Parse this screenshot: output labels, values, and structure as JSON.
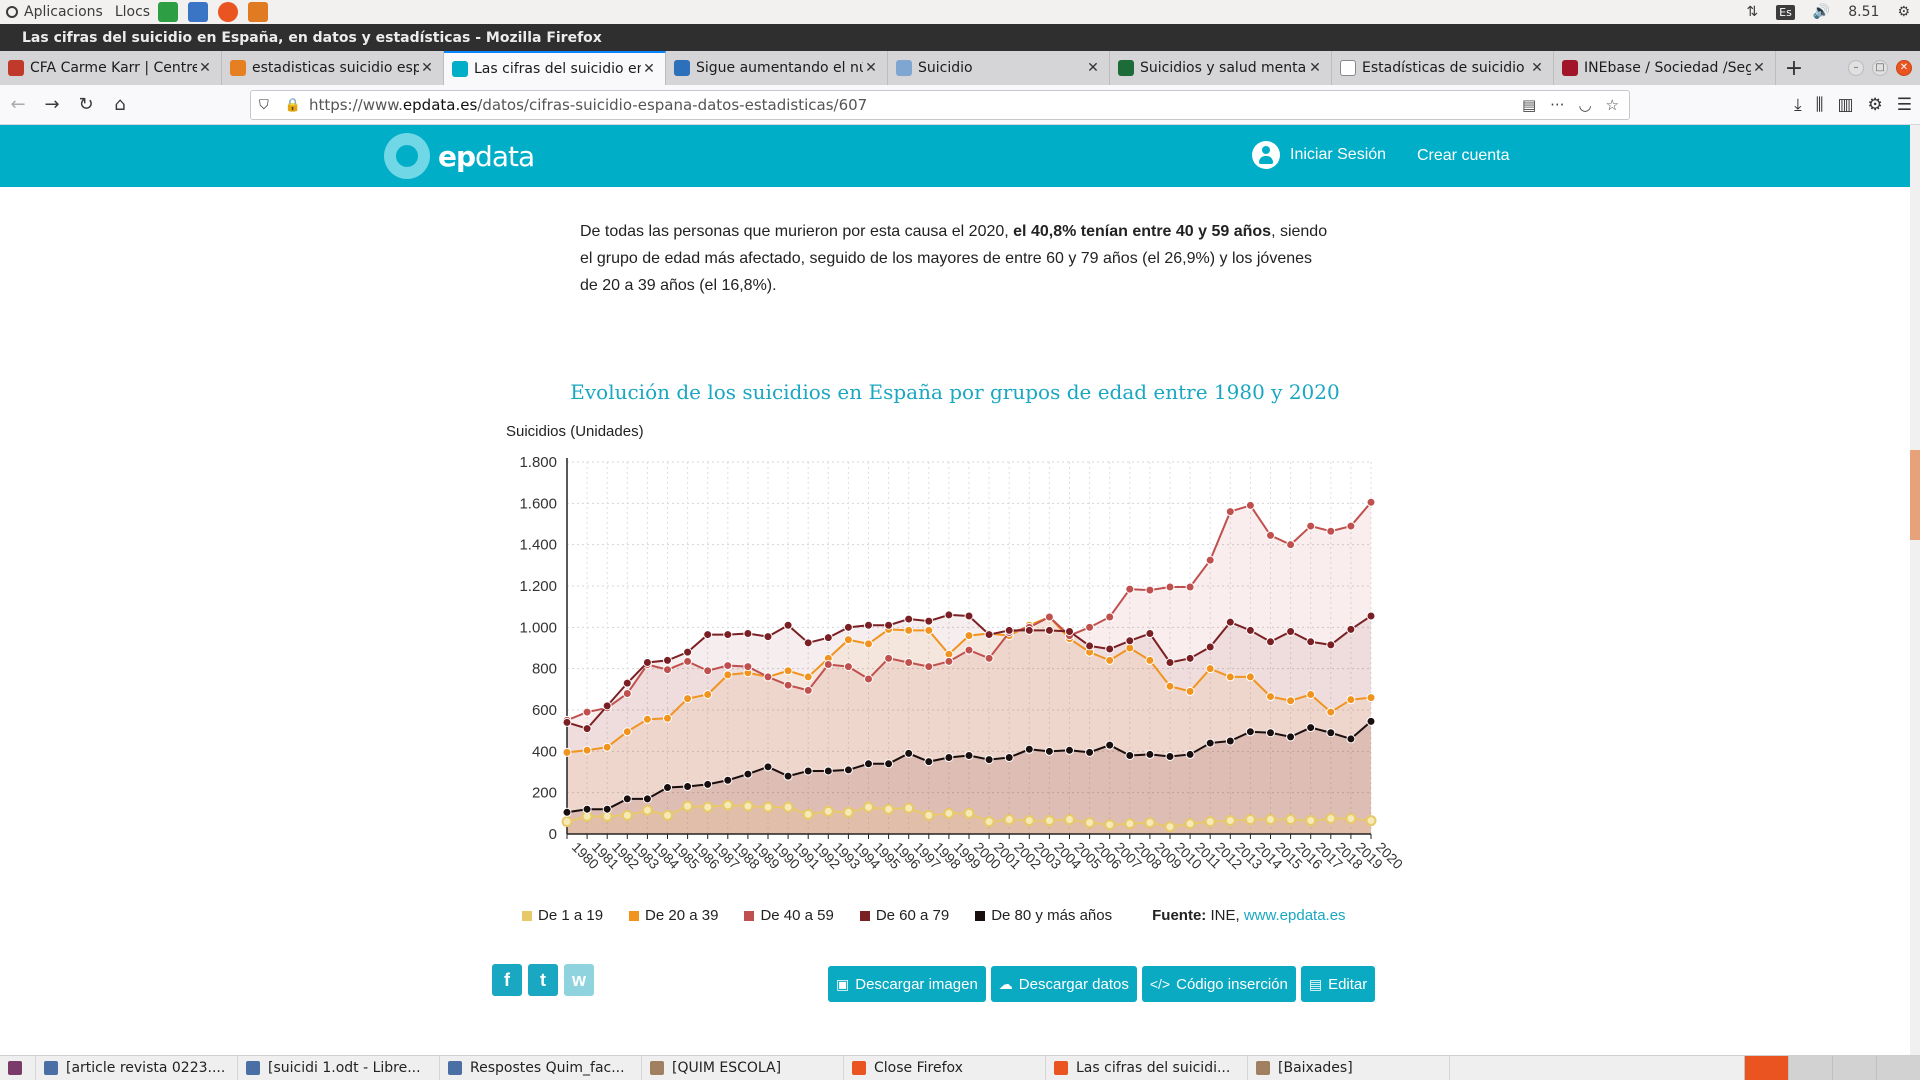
{
  "os": {
    "menu_apps": "Aplicacions",
    "menu_places": "Llocs",
    "keyboard": "Es",
    "clock": "8.51"
  },
  "window_title": "Las cifras del suicidio en España, en datos y estadísticas - Mozilla Firefox",
  "tabs": [
    {
      "label": "CFA Carme Karr | Centre de",
      "color": "#c0392b",
      "active": false
    },
    {
      "label": "estadisticas suicidio espa",
      "color": "#e67e22",
      "active": false
    },
    {
      "label": "Las cifras del suicidio en",
      "color": "#00aec7",
      "active": true
    },
    {
      "label": "Sigue aumentando el núme",
      "color": "#2c6fbb",
      "active": false
    },
    {
      "label": "Suicidio",
      "color": "#7fa6d0",
      "active": false
    },
    {
      "label": "Suicidios y salud mental en",
      "color": "#1e6b3a",
      "active": false
    },
    {
      "label": "Estadísticas de suicidio en",
      "color": "#ffffff",
      "active": false
    },
    {
      "label": "INEbase / Sociedad /Segu",
      "color": "#a0152a",
      "active": false
    }
  ],
  "url": {
    "prefix": "https://www.",
    "domain": "epdata.es",
    "path": "/datos/cifras-suicidio-espana-datos-estadisticas/607"
  },
  "site": {
    "logo_ep": "ep",
    "logo_data": "data",
    "login": "Iniciar Sesión",
    "register": "Crear cuenta"
  },
  "article": {
    "p1_a": "De todas las personas que murieron por esta causa el 2020, ",
    "p1_bold": "el 40,8% tenían entre 40 y 59 años",
    "p1_b": ", siendo el grupo de edad más afectado, seguido de los mayores de entre 60 y 79 años (el 26,9%) y los jóvenes de 20 a 39 años (el 16,8%)."
  },
  "chart_data": {
    "type": "line",
    "title": "Evolución de los suicidios en España por grupos de edad entre 1980 y 2020",
    "ylabel": "Suicidios (Unidades)",
    "ylim": [
      0,
      1800
    ],
    "yticks": [
      0,
      200,
      400,
      600,
      800,
      1000,
      1200,
      1400,
      1600,
      1800
    ],
    "ytick_labels": [
      "0",
      "200",
      "400",
      "600",
      "800",
      "1.000",
      "1.200",
      "1.400",
      "1.600",
      "1.800"
    ],
    "x": [
      "1980",
      "1981",
      "1982",
      "1983",
      "1984",
      "1985",
      "1986",
      "1987",
      "1988",
      "1989",
      "1990",
      "1991",
      "1992",
      "1993",
      "1994",
      "1995",
      "1996",
      "1997",
      "1998",
      "1999",
      "2000",
      "2001",
      "2002",
      "2003",
      "2004",
      "2005",
      "2006",
      "2007",
      "2008",
      "2009",
      "2010",
      "2011",
      "2012",
      "2013",
      "2014",
      "2015",
      "2016",
      "2017",
      "2018",
      "2019",
      "2020"
    ],
    "grid": true,
    "legend_position": "bottom",
    "series": [
      {
        "name": "De 1 a 19",
        "color": "#e8c96a",
        "values": [
          60,
          85,
          85,
          90,
          115,
          90,
          135,
          130,
          140,
          135,
          130,
          130,
          95,
          110,
          105,
          130,
          120,
          125,
          90,
          100,
          100,
          60,
          70,
          65,
          65,
          70,
          55,
          45,
          50,
          55,
          35,
          50,
          60,
          65,
          70,
          70,
          70,
          65,
          75,
          75,
          65
        ]
      },
      {
        "name": "De 20 a 39",
        "color": "#f0941f",
        "values": [
          395,
          405,
          420,
          495,
          555,
          560,
          655,
          675,
          770,
          780,
          760,
          790,
          760,
          850,
          940,
          920,
          990,
          985,
          985,
          870,
          960,
          970,
          960,
          1010,
          1050,
          945,
          880,
          840,
          900,
          840,
          715,
          690,
          800,
          760,
          760,
          665,
          645,
          675,
          590,
          650,
          660
        ]
      },
      {
        "name": "De 40 a 59",
        "color": "#c0504d",
        "values": [
          550,
          590,
          610,
          680,
          820,
          795,
          835,
          790,
          815,
          810,
          760,
          720,
          695,
          820,
          810,
          750,
          850,
          830,
          810,
          835,
          890,
          850,
          975,
          1000,
          1050,
          960,
          1000,
          1050,
          1185,
          1180,
          1195,
          1195,
          1325,
          1560,
          1590,
          1445,
          1400,
          1490,
          1465,
          1490,
          1605
        ]
      },
      {
        "name": "De 60 a 79",
        "color": "#7a1f24",
        "values": [
          540,
          510,
          620,
          730,
          830,
          840,
          880,
          965,
          965,
          970,
          955,
          1010,
          925,
          950,
          1000,
          1010,
          1010,
          1040,
          1030,
          1060,
          1055,
          965,
          985,
          985,
          985,
          980,
          910,
          895,
          935,
          970,
          830,
          850,
          905,
          1025,
          985,
          930,
          980,
          930,
          915,
          990,
          1055
        ]
      },
      {
        "name": "De 80 y más años",
        "color": "#1a0f0f",
        "values": [
          105,
          120,
          120,
          170,
          170,
          225,
          230,
          240,
          260,
          290,
          325,
          280,
          305,
          305,
          310,
          340,
          340,
          390,
          350,
          370,
          380,
          360,
          370,
          410,
          400,
          405,
          395,
          430,
          380,
          385,
          375,
          385,
          440,
          450,
          495,
          490,
          470,
          515,
          490,
          460,
          545
        ]
      }
    ],
    "source_label": "Fuente:",
    "source_text": "INE,",
    "source_link": "www.epdata.es"
  },
  "actions": {
    "download_image": "Descargar imagen",
    "download_data": "Descargar datos",
    "embed_code": "Código inserción",
    "edit": "Editar"
  },
  "share": {
    "facebook": "f",
    "twitter": "t",
    "whatsapp": "w"
  },
  "taskbar": [
    {
      "label": "[article revista 0223....",
      "color": "#4a6fa5"
    },
    {
      "label": "[suicidi 1.odt - Libre...",
      "color": "#4a6fa5"
    },
    {
      "label": "Respostes Quim_fac...",
      "color": "#4a6fa5"
    },
    {
      "label": "[QUIM ESCOLA]",
      "color": "#a08060"
    },
    {
      "label": "Close Firefox",
      "color": "#e95420"
    },
    {
      "label": "Las cifras del suicidi...",
      "color": "#e95420"
    },
    {
      "label": "[Baixades]",
      "color": "#a08060"
    }
  ]
}
